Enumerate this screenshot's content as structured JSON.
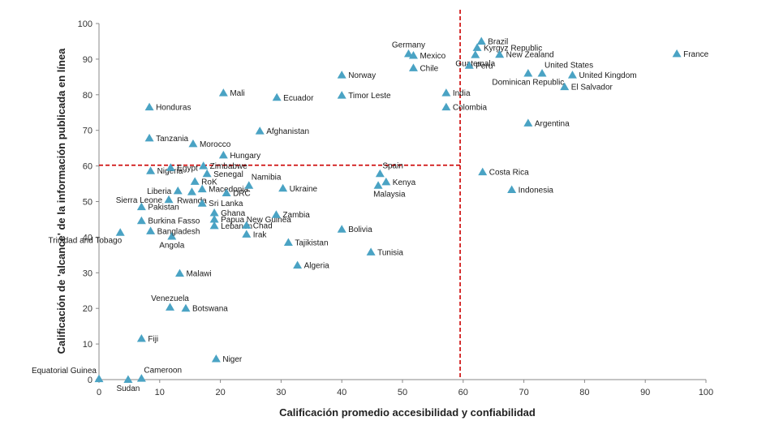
{
  "chart_data": {
    "type": "scatter",
    "xlabel": "Calificación promedio accesibilidad y confiabilidad",
    "ylabel": "Calificación de 'alcance' de la información publicada en línea",
    "xlim": [
      0,
      100
    ],
    "ylim": [
      0,
      100
    ],
    "xticks": [
      "0",
      "10",
      "20",
      "30",
      "40",
      "50",
      "60",
      "70",
      "80",
      "90",
      "100"
    ],
    "yticks": [
      "0",
      "10",
      "20",
      "30",
      "40",
      "50",
      "60",
      "70",
      "80",
      "90",
      "100"
    ],
    "grid": false,
    "reference_lines": {
      "x": 59.5,
      "y": 60.2,
      "color": "#cc0000"
    },
    "marker": {
      "shape": "triangle",
      "color": "#4aa3c4"
    },
    "points": [
      {
        "label": "Equatorial Guinea",
        "x": 0,
        "y": 0.2,
        "anchor": "above-left"
      },
      {
        "label": "Sudan",
        "x": 4.8,
        "y": 0,
        "anchor": "below"
      },
      {
        "label": "Cameroon",
        "x": 7,
        "y": 0.3,
        "anchor": "above-right"
      },
      {
        "label": "Fiji",
        "x": 7,
        "y": 11.5,
        "anchor": "right"
      },
      {
        "label": "Niger",
        "x": 19.3,
        "y": 5.8,
        "anchor": "right"
      },
      {
        "label": "Venezuela",
        "x": 11.7,
        "y": 20.3,
        "anchor": "above"
      },
      {
        "label": "Botswana",
        "x": 14.3,
        "y": 20,
        "anchor": "right"
      },
      {
        "label": "Malawi",
        "x": 13.3,
        "y": 29.8,
        "anchor": "right"
      },
      {
        "label": "Trinidad and Tobago",
        "x": 3.5,
        "y": 41.3,
        "anchor": "below-left"
      },
      {
        "label": "Angola",
        "x": 12,
        "y": 40.2,
        "anchor": "below"
      },
      {
        "label": "Bangladesh",
        "x": 8.5,
        "y": 41.7,
        "anchor": "right"
      },
      {
        "label": "Burkina Fasso",
        "x": 7,
        "y": 44.6,
        "anchor": "right"
      },
      {
        "label": "Pakistan",
        "x": 7,
        "y": 48.5,
        "anchor": "right"
      },
      {
        "label": "Sierra Leone",
        "x": 11.5,
        "y": 50.5,
        "anchor": "left"
      },
      {
        "label": "Liberia",
        "x": 13,
        "y": 53,
        "anchor": "left"
      },
      {
        "label": "Nigeria",
        "x": 8.5,
        "y": 58.6,
        "anchor": "right"
      },
      {
        "label": "Egypt",
        "x": 11.8,
        "y": 59.5,
        "anchor": "right"
      },
      {
        "label": "Tanzania",
        "x": 8.3,
        "y": 67.8,
        "anchor": "right"
      },
      {
        "label": "Honduras",
        "x": 8.3,
        "y": 76.5,
        "anchor": "right"
      },
      {
        "label": "Morocco",
        "x": 15.5,
        "y": 66.2,
        "anchor": "right"
      },
      {
        "label": "Hungary",
        "x": 20.5,
        "y": 63,
        "anchor": "right"
      },
      {
        "label": "Zimbabwe",
        "x": 17.2,
        "y": 60,
        "anchor": "right"
      },
      {
        "label": "Senegal",
        "x": 17.8,
        "y": 57.8,
        "anchor": "right"
      },
      {
        "label": "RoK",
        "x": 15.8,
        "y": 55.6,
        "anchor": "right"
      },
      {
        "label": "Macedonia",
        "x": 17,
        "y": 53.5,
        "anchor": "right"
      },
      {
        "label": "DRC",
        "x": 21,
        "y": 52.4,
        "anchor": "right"
      },
      {
        "label": "Rwanda",
        "x": 15.3,
        "y": 52.7,
        "anchor": "below"
      },
      {
        "label": "Sri Lanka",
        "x": 17,
        "y": 49.5,
        "anchor": "right"
      },
      {
        "label": "Ghana",
        "x": 19,
        "y": 46.8,
        "anchor": "right"
      },
      {
        "label": "Papua New Guinea",
        "x": 19,
        "y": 45,
        "anchor": "right"
      },
      {
        "label": "Lebanon",
        "x": 19,
        "y": 43.2,
        "anchor": "right"
      },
      {
        "label": "Chad",
        "x": 24.3,
        "y": 43.3,
        "anchor": "right"
      },
      {
        "label": "Irak",
        "x": 24.3,
        "y": 40.8,
        "anchor": "right"
      },
      {
        "label": "Namibia",
        "x": 24.7,
        "y": 54.5,
        "anchor": "above-right"
      },
      {
        "label": "Ukraine",
        "x": 30.3,
        "y": 53.7,
        "anchor": "right"
      },
      {
        "label": "Zambia",
        "x": 29.2,
        "y": 46.3,
        "anchor": "right"
      },
      {
        "label": "Tajikistan",
        "x": 31.2,
        "y": 38.5,
        "anchor": "right"
      },
      {
        "label": "Algeria",
        "x": 32.7,
        "y": 32.1,
        "anchor": "right"
      },
      {
        "label": "Afghanistan",
        "x": 26.5,
        "y": 69.8,
        "anchor": "right"
      },
      {
        "label": "Mali",
        "x": 20.5,
        "y": 80.5,
        "anchor": "right"
      },
      {
        "label": "Ecuador",
        "x": 29.3,
        "y": 79.2,
        "anchor": "right"
      },
      {
        "label": "Timor Leste",
        "x": 40,
        "y": 79.8,
        "anchor": "right"
      },
      {
        "label": "Norway",
        "x": 40,
        "y": 85.5,
        "anchor": "right"
      },
      {
        "label": "Bolivia",
        "x": 40,
        "y": 42.2,
        "anchor": "right"
      },
      {
        "label": "Tunisia",
        "x": 44.8,
        "y": 35.8,
        "anchor": "right"
      },
      {
        "label": "Spain",
        "x": 46.3,
        "y": 57.8,
        "anchor": "above-right"
      },
      {
        "label": "Kenya",
        "x": 47.3,
        "y": 55.5,
        "anchor": "right"
      },
      {
        "label": "Malaysia",
        "x": 46,
        "y": 54.5,
        "anchor": "below-right"
      },
      {
        "label": "Germany",
        "x": 51,
        "y": 91.5,
        "anchor": "above"
      },
      {
        "label": "Mexico",
        "x": 51.8,
        "y": 91,
        "anchor": "right"
      },
      {
        "label": "Chile",
        "x": 51.8,
        "y": 87.5,
        "anchor": "right"
      },
      {
        "label": "India",
        "x": 57.2,
        "y": 80.5,
        "anchor": "right"
      },
      {
        "label": "Colombia",
        "x": 57.2,
        "y": 76.5,
        "anchor": "right"
      },
      {
        "label": "Brazil",
        "x": 63,
        "y": 95,
        "anchor": "right"
      },
      {
        "label": "Kyrgyz Republic",
        "x": 62.3,
        "y": 93.2,
        "anchor": "right"
      },
      {
        "label": "Guatemala",
        "x": 62,
        "y": 91.2,
        "anchor": "below"
      },
      {
        "label": "New Zealand",
        "x": 66,
        "y": 91.3,
        "anchor": "right"
      },
      {
        "label": "Peru",
        "x": 61,
        "y": 88.2,
        "anchor": "right"
      },
      {
        "label": "Dominican Republic",
        "x": 70.7,
        "y": 86,
        "anchor": "below"
      },
      {
        "label": "United States",
        "x": 73,
        "y": 86,
        "anchor": "above-right"
      },
      {
        "label": "United Kingdom",
        "x": 78,
        "y": 85.5,
        "anchor": "right"
      },
      {
        "label": "El Salvador",
        "x": 76.7,
        "y": 82.2,
        "anchor": "right"
      },
      {
        "label": "Argentina",
        "x": 70.7,
        "y": 72,
        "anchor": "right"
      },
      {
        "label": "Costa Rica",
        "x": 63.2,
        "y": 58.3,
        "anchor": "right"
      },
      {
        "label": "Indonesia",
        "x": 68,
        "y": 53.3,
        "anchor": "right"
      },
      {
        "label": "France",
        "x": 95.2,
        "y": 91.5,
        "anchor": "right"
      }
    ]
  }
}
